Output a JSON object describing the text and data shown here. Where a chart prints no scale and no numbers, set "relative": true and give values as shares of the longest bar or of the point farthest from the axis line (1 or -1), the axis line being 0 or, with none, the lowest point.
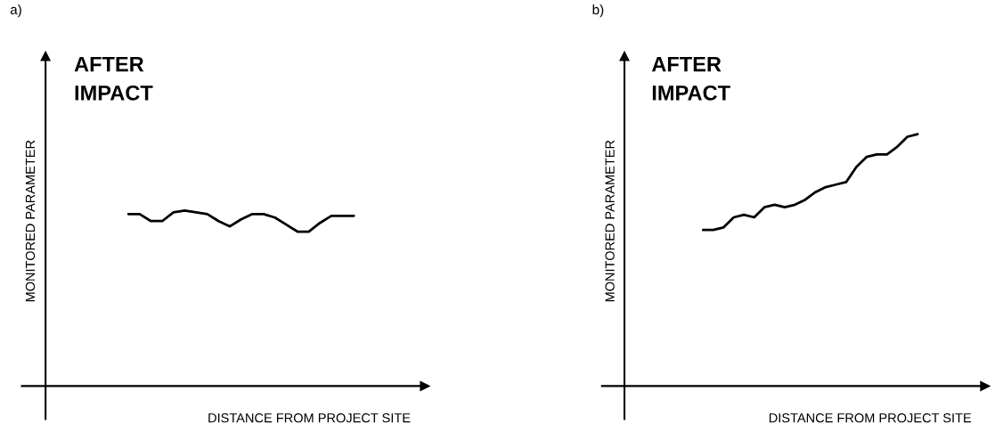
{
  "chart_data": [
    {
      "type": "line",
      "relative": true,
      "title": "AFTER\nIMPACT",
      "xlabel": "DISTANCE FROM PROJECT SITE",
      "ylabel": "MONITORED PARAMETER",
      "annotations": [
        "a)"
      ],
      "categories": [
        null,
        null,
        null,
        null,
        null,
        null,
        null,
        null,
        null,
        null,
        null,
        null,
        null,
        null,
        null,
        null,
        null,
        null,
        null,
        null,
        null
      ],
      "series": [
        {
          "color": "#000000",
          "values": [
            0.98,
            0.98,
            0.94,
            0.94,
            0.99,
            1,
            0.99,
            0.98,
            0.94,
            0.91,
            0.95,
            0.98,
            0.98,
            0.96,
            0.92,
            0.88,
            0.88,
            0.93,
            0.97,
            0.97,
            0.97
          ]
        }
      ]
    },
    {
      "type": "line",
      "relative": true,
      "title": "AFTER\nIMPACT",
      "xlabel": "DISTANCE FROM PROJECT SITE",
      "ylabel": "MONITORED PARAMETER",
      "annotations": [
        "b)"
      ],
      "categories": [
        null,
        null,
        null,
        null,
        null,
        null,
        null,
        null,
        null,
        null,
        null,
        null,
        null,
        null,
        null,
        null,
        null,
        null,
        null,
        null,
        null,
        null
      ],
      "series": [
        {
          "color": "#000000",
          "values": [
            0.62,
            0.62,
            0.63,
            0.67,
            0.68,
            0.67,
            0.71,
            0.72,
            0.71,
            0.72,
            0.74,
            0.77,
            0.79,
            0.8,
            0.81,
            0.87,
            0.91,
            0.92,
            0.92,
            0.95,
            0.99,
            1
          ]
        }
      ]
    }
  ]
}
